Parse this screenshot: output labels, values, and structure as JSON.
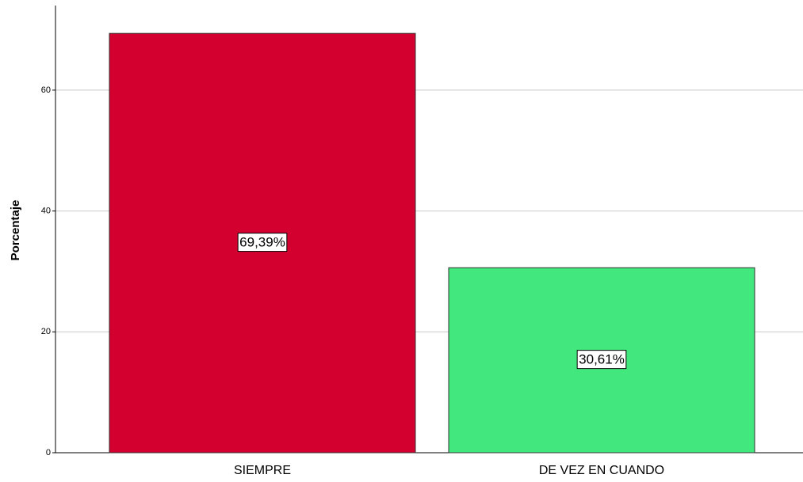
{
  "chart_data": {
    "type": "bar",
    "y_label": "Porcentaje",
    "categories": [
      "SIEMPRE",
      "DE VEZ EN CUANDO"
    ],
    "values": [
      69.39,
      30.61
    ],
    "value_labels": [
      "69,39%",
      "30,61%"
    ],
    "colors": [
      "#d3002f",
      "#42e87d"
    ],
    "ylim": [
      0,
      74
    ],
    "yticks": [
      0,
      20,
      40,
      60
    ],
    "grid": true
  }
}
